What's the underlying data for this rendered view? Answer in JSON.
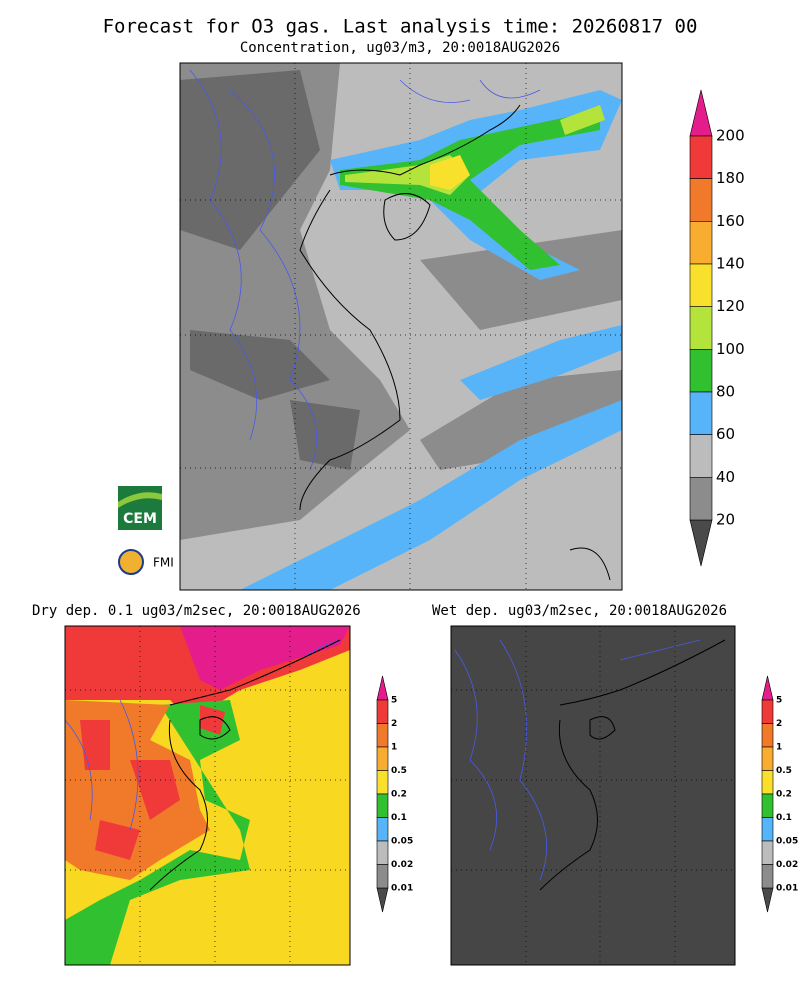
{
  "header": {
    "title": "Forecast for O3 gas. Last analysis time: 20260817 00",
    "subtitle": "Concentration, ug03/m3, 20:0018AUG2026"
  },
  "logos": {
    "cem": "CEM",
    "fmi": "FMI"
  },
  "panels": [
    {
      "legend": {
        "labels": [
          200,
          180,
          160,
          140,
          120,
          100,
          80,
          60,
          40,
          20
        ],
        "colors": [
          "#f03a3a",
          "#f07a2a",
          "#f8ac30",
          "#f8e02c",
          "#b4e43c",
          "#30c030",
          "#58b4f8",
          "#bcbcbc",
          "#8c8c8c"
        ],
        "over": "#e41c8c",
        "under": "#4a4a4a"
      }
    },
    {
      "title": "Dry dep. 0.1 ug03/m2sec, 20:0018AUG2026",
      "legend": {
        "labels": [
          5,
          2,
          1,
          0.5,
          0.2,
          0.1,
          0.05,
          0.02,
          0.01
        ],
        "colors": [
          "#f03a3a",
          "#f07a2a",
          "#f8ac30",
          "#f8e02c",
          "#30c030",
          "#58b4f8",
          "#bcbcbc",
          "#8c8c8c"
        ],
        "over": "#e41c8c",
        "under": "#4a4a4a"
      }
    },
    {
      "title": "Wet dep. ug03/m2sec, 20:0018AUG2026",
      "legend": {
        "labels": [
          5,
          2,
          1,
          0.5,
          0.2,
          0.1,
          0.05,
          0.02,
          0.01
        ],
        "colors": [
          "#f03a3a",
          "#f07a2a",
          "#f8ac30",
          "#f8e02c",
          "#30c030",
          "#58b4f8",
          "#bcbcbc",
          "#8c8c8c"
        ],
        "over": "#e41c8c",
        "under": "#4a4a4a"
      }
    }
  ]
}
